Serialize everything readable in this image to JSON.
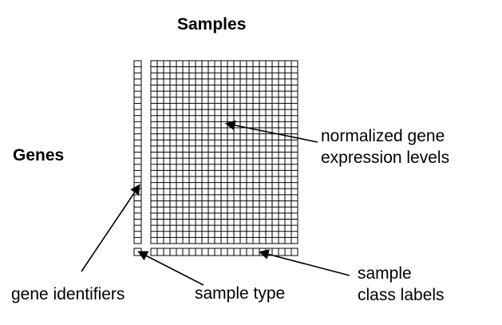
{
  "titles": {
    "samples": "Samples",
    "genes": "Genes"
  },
  "annotations": {
    "expression_levels": [
      "normalized gene",
      "expression levels"
    ],
    "gene_identifiers": "gene identifiers",
    "sample_type": "sample type",
    "class_labels": [
      "sample",
      "class labels"
    ]
  },
  "grid": {
    "rows": 30,
    "columns": 23,
    "class_label_cells": 23,
    "line_color": "#000000",
    "background": "#ffffff"
  }
}
